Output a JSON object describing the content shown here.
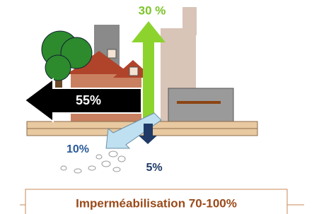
{
  "arrows": [
    {
      "label": "30 %"
    },
    {
      "label": "55%"
    },
    {
      "label": "10%"
    },
    {
      "label": "5%"
    }
  ],
  "caption": "Imperméabilisation 70-100%"
}
